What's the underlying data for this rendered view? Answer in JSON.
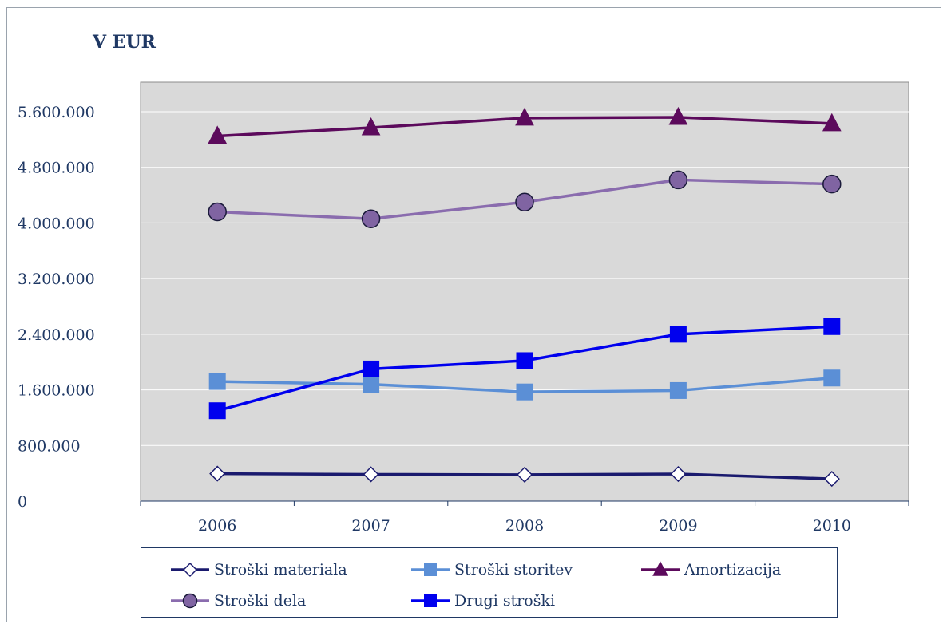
{
  "unit_label": "V EUR",
  "chart_data": {
    "type": "line",
    "title": "",
    "xlabel": "",
    "ylabel": "V EUR",
    "categories": [
      "2006",
      "2007",
      "2008",
      "2009",
      "2010"
    ],
    "ylim": [
      0,
      5600000
    ],
    "yticks": [
      0,
      800000,
      1600000,
      2400000,
      3200000,
      4000000,
      4800000,
      5600000
    ],
    "ytick_labels": [
      "0",
      "800.000",
      "1.600.000",
      "2.400.000",
      "3.200.000",
      "4.000.000",
      "4.800.000",
      "5.600.000"
    ],
    "grid": true,
    "legend_position": "bottom",
    "series": [
      {
        "name": "Stroški materiala",
        "marker": "diamond",
        "color": "#1a1a6e",
        "marker_fill": "#ffffff",
        "values": [
          395000,
          385000,
          380000,
          390000,
          320000
        ]
      },
      {
        "name": "Stroški storitev",
        "marker": "square",
        "color": "#5b8fd6",
        "marker_fill": "#5b8fd6",
        "values": [
          1720000,
          1680000,
          1570000,
          1590000,
          1770000
        ]
      },
      {
        "name": "Amortizacija",
        "marker": "triangle",
        "color": "#5c0a5c",
        "marker_fill": "#5c0a5c",
        "values": [
          5250000,
          5370000,
          5510000,
          5520000,
          5430000
        ]
      },
      {
        "name": "Stroški dela",
        "marker": "circle",
        "color": "#8a6cae",
        "marker_fill": "#8064a2",
        "values": [
          4160000,
          4060000,
          4300000,
          4620000,
          4560000
        ]
      },
      {
        "name": "Drugi stroški",
        "marker": "square",
        "color": "#0000ee",
        "marker_fill": "#0000ee",
        "values": [
          1300000,
          1900000,
          2020000,
          2400000,
          2510000
        ]
      }
    ]
  }
}
